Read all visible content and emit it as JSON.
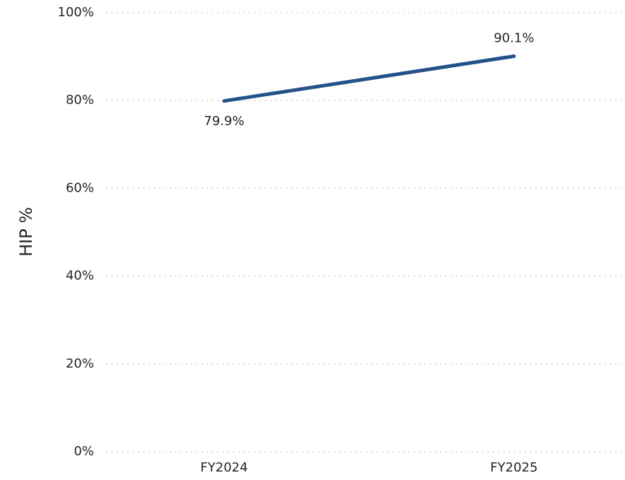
{
  "chart_data": {
    "type": "line",
    "y_label": "HIP %",
    "categories": [
      "FY2024",
      "FY2025"
    ],
    "series": [
      {
        "name": "HIP %",
        "color": "#235189",
        "values": [
          79.9,
          90.1
        ],
        "value_labels": [
          "79.9%",
          "90.1%"
        ]
      }
    ],
    "ylim": [
      0,
      100
    ],
    "yticks": [
      {
        "value": 0,
        "label": "0%"
      },
      {
        "value": 20,
        "label": "20%"
      },
      {
        "value": 40,
        "label": "40%"
      },
      {
        "value": 60,
        "label": "60%"
      },
      {
        "value": 80,
        "label": "80%"
      },
      {
        "value": 100,
        "label": "100%"
      }
    ],
    "grid": true
  }
}
